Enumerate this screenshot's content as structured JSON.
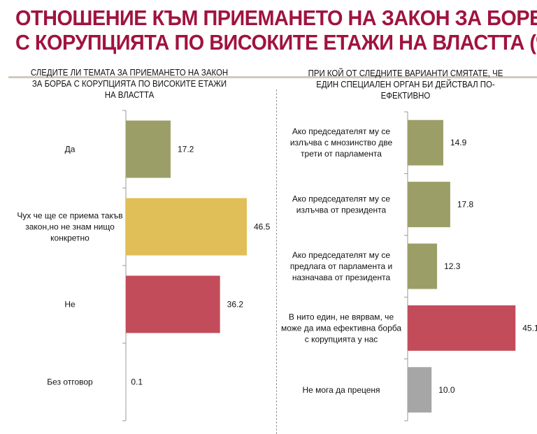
{
  "title_line1": "ОТНОШЕНИЕ КЪМ ПРИЕМАНЕТО НА ЗАКОН ЗА БОРБА",
  "title_line2": "С КОРУПЦИЯТА ПО ВИСОКИТЕ ЕТАЖИ НА ВЛАСТТА (%)",
  "chart_data": [
    {
      "type": "bar",
      "orientation": "horizontal",
      "title": "СЛЕДИТЕ ЛИ ТЕМАТА ЗА ПРИЕМАНЕТО НА ЗАКОН ЗА БОРБА С КОРУПЦИЯТА ПО ВИСОКИТЕ ЕТАЖИ НА ВЛАСТТА",
      "categories": [
        [
          "Да"
        ],
        [
          "Чух че ще се приема такъв",
          "закон,но не знам нищо",
          "конкретно"
        ],
        [
          "Не"
        ],
        [
          "Без отговор"
        ]
      ],
      "values": [
        17.2,
        46.5,
        36.2,
        0.1
      ],
      "labels": [
        "17.2",
        "46.5",
        "36.2",
        "0.1"
      ],
      "colors": [
        "#9c9e68",
        "#e1bf58",
        "#c34c5b",
        "#a6a6a6"
      ]
    },
    {
      "type": "bar",
      "orientation": "horizontal",
      "title": "ПРИ КОЙ ОТ СЛЕДНИТЕ ВАРИАНТИ СМЯТАТЕ, ЧЕ ЕДИН СПЕЦИАЛЕН ОРГАН БИ ДЕЙСТВАЛ ПО-ЕФЕКТИВНО",
      "categories": [
        [
          "Ако председателят му се",
          "излъчва с мнозинство две",
          "трети от парламента"
        ],
        [
          "Ако председателят му се",
          "излъчва от президента"
        ],
        [
          "Ако председателят му се",
          "предлага от парламента и",
          "назначава от президента"
        ],
        [
          "В нито един, не вярвам, че",
          "може да има ефективна борба",
          "с корупцията у нас"
        ],
        [
          "Не мога да преценя"
        ]
      ],
      "values": [
        14.9,
        17.8,
        12.3,
        45.1,
        10.0
      ],
      "labels": [
        "14.9",
        "17.8",
        "12.3",
        "45.1",
        "10.0"
      ],
      "colors": [
        "#9c9e68",
        "#9c9e68",
        "#9c9e68",
        "#c34c5b",
        "#a6a6a6"
      ]
    }
  ]
}
